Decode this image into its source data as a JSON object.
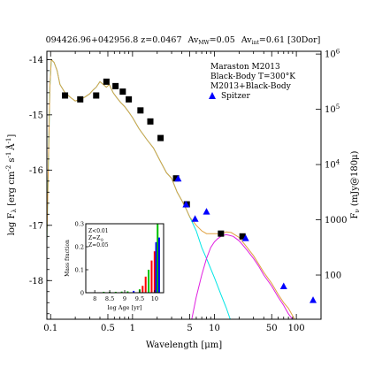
{
  "chart_data": {
    "type": "line",
    "title": "094426.96+042956.8 z=0.0467 Av_MW=0.05 Av_int=0.61 [30Dor]",
    "title_parts": {
      "name": "094426.96+042956.8 z=0.0467",
      "avmw": "Av",
      "avmw_sub": "MW",
      "avmw_val": "=0.05",
      "avint": "Av",
      "avint_sub": "int",
      "avint_val": "=0.61 [30Dor]"
    },
    "xlabel": "Wavelength [μm]",
    "ylabel": "log F_λ [erg cm^-2 s^-1 Å^-1]",
    "ylabel_parts": {
      "a": "log F",
      "a_sub": "λ",
      "b": " [erg cm",
      "b_sup": "-2",
      "c": " s",
      "c_sup": "-1",
      "d": "Å",
      "d_sup": "-1",
      "e": "]"
    },
    "y2label": "F_ν (mJy@180μ)",
    "y2label_parts": {
      "a": "F",
      "a_sub": "ν",
      "b": " (mJy@180μ)"
    },
    "x_scale": "log",
    "xlim": [
      0.09,
      200
    ],
    "ylim": [
      -18.7,
      -13.85
    ],
    "x_ticks": [
      0.1,
      0.5,
      1,
      5,
      10,
      50,
      100
    ],
    "x_tick_labels": [
      "0.1",
      "0.5",
      "1",
      "5",
      "10",
      "50",
      "100"
    ],
    "y_ticks": [
      -14,
      -15,
      -16,
      -17,
      -18
    ],
    "y_tick_labels": [
      "-14",
      "-15",
      "-16",
      "-17",
      "-18"
    ],
    "y2_ticks": [
      {
        "y": -13.9,
        "label": "10^6",
        "base": "10",
        "exp": "6"
      },
      {
        "y": -14.9,
        "label": "10^5",
        "base": "10",
        "exp": "5"
      },
      {
        "y": -15.9,
        "label": "10^4",
        "base": "10",
        "exp": "4"
      },
      {
        "y": -16.9,
        "label": "1000",
        "base": "1000",
        "exp": ""
      },
      {
        "y": -17.9,
        "label": "100",
        "base": "100",
        "exp": ""
      }
    ],
    "legend": {
      "placement": "top-right",
      "entries": [
        {
          "label": "Maraston M2013",
          "color": "#00e5e5"
        },
        {
          "label": "Black-Body T=300°K",
          "color": "#e020e0"
        },
        {
          "label": "M2013+Black-Body",
          "color": "#e0a040"
        },
        {
          "label": "Spitzer",
          "color": "#0000ff",
          "marker": "triangle"
        }
      ]
    },
    "series": [
      {
        "name": "Maraston M2013",
        "color": "#00e5e5",
        "x": [
          0.09,
          0.098,
          0.102,
          0.11,
          0.12,
          0.13,
          0.15,
          0.18,
          0.2,
          0.23,
          0.26,
          0.3,
          0.33,
          0.36,
          0.4,
          0.44,
          0.48,
          0.52,
          0.58,
          0.65,
          0.72,
          0.8,
          0.9,
          1.0,
          1.2,
          1.5,
          1.8,
          2.2,
          2.6,
          3.0,
          3.5,
          4.0,
          4.5,
          5.0,
          6.0,
          7.0,
          8.0,
          10.0,
          12.0,
          14.0,
          16.0
        ],
        "y": [
          -17.3,
          -14.5,
          -14.0,
          -14.05,
          -14.2,
          -14.45,
          -14.6,
          -14.7,
          -14.75,
          -14.72,
          -14.68,
          -14.62,
          -14.55,
          -14.5,
          -14.4,
          -14.45,
          -14.5,
          -14.45,
          -14.6,
          -14.7,
          -14.78,
          -14.85,
          -14.95,
          -15.05,
          -15.25,
          -15.45,
          -15.6,
          -15.85,
          -16.05,
          -16.15,
          -16.4,
          -16.55,
          -16.7,
          -16.85,
          -17.1,
          -17.4,
          -17.6,
          -17.95,
          -18.25,
          -18.5,
          -18.75
        ]
      },
      {
        "name": "Black-Body T=300°K",
        "color": "#e020e0",
        "x": [
          5.2,
          6.0,
          7.0,
          8.0,
          9.0,
          10.0,
          11.0,
          12.0,
          13.0,
          14.0,
          15.0,
          17.0,
          20.0,
          22.0,
          25.0,
          30.0,
          35.0,
          40.0,
          50.0,
          60.0,
          70.0,
          80.0,
          95.0
        ],
        "y": [
          -18.75,
          -18.3,
          -17.9,
          -17.6,
          -17.4,
          -17.3,
          -17.24,
          -17.2,
          -17.18,
          -17.17,
          -17.18,
          -17.2,
          -17.28,
          -17.35,
          -17.45,
          -17.6,
          -17.75,
          -17.9,
          -18.1,
          -18.3,
          -18.45,
          -18.6,
          -18.75
        ]
      },
      {
        "name": "M2013+Black-Body",
        "color": "#e0a040",
        "x": [
          0.09,
          0.098,
          0.102,
          0.11,
          0.12,
          0.13,
          0.15,
          0.18,
          0.2,
          0.23,
          0.26,
          0.3,
          0.33,
          0.36,
          0.4,
          0.44,
          0.48,
          0.52,
          0.58,
          0.65,
          0.72,
          0.8,
          0.9,
          1.0,
          1.2,
          1.5,
          1.8,
          2.2,
          2.6,
          3.0,
          3.5,
          4.0,
          4.5,
          5.0,
          6.0,
          7.0,
          8.0,
          10.0,
          12.0,
          14.0,
          16.0,
          20.0,
          25.0,
          30.0,
          40.0,
          50.0,
          60.0,
          70.0,
          80.0,
          95.0,
          110.0
        ],
        "y": [
          -17.3,
          -14.5,
          -14.0,
          -14.05,
          -14.2,
          -14.45,
          -14.6,
          -14.7,
          -14.75,
          -14.72,
          -14.68,
          -14.62,
          -14.55,
          -14.5,
          -14.4,
          -14.45,
          -14.5,
          -14.45,
          -14.6,
          -14.7,
          -14.78,
          -14.85,
          -14.95,
          -15.05,
          -15.25,
          -15.45,
          -15.6,
          -15.85,
          -16.05,
          -16.15,
          -16.4,
          -16.55,
          -16.7,
          -16.85,
          -17.0,
          -17.1,
          -17.15,
          -17.15,
          -17.15,
          -17.12,
          -17.13,
          -17.22,
          -17.4,
          -17.55,
          -17.85,
          -18.05,
          -18.25,
          -18.4,
          -18.5,
          -18.7,
          -18.8
        ]
      }
    ],
    "photometry_squares": {
      "marker": "square",
      "color": "#000000",
      "x": [
        0.15,
        0.23,
        0.36,
        0.48,
        0.62,
        0.76,
        0.9,
        1.25,
        1.65,
        2.2,
        3.4,
        4.6,
        12.0,
        22.0
      ],
      "y": [
        -14.65,
        -14.72,
        -14.65,
        -14.4,
        -14.48,
        -14.58,
        -14.72,
        -14.92,
        -15.12,
        -15.42,
        -16.15,
        -16.62,
        -17.15,
        -17.2
      ]
    },
    "photometry_spitzer": {
      "marker": "triangle",
      "color": "#0000ff",
      "x": [
        3.6,
        4.5,
        5.8,
        8.0,
        24.0,
        70.0,
        160.0
      ],
      "y": [
        -16.15,
        -16.62,
        -16.88,
        -16.75,
        -17.23,
        -18.1,
        -18.35
      ]
    },
    "inset": {
      "type": "bar",
      "xlabel": "log Age [yr]",
      "ylabel": "Mass fraction",
      "xlim": [
        7.7,
        10.3
      ],
      "ylim": [
        0,
        0.3
      ],
      "x_ticks": [
        8,
        8.5,
        9,
        9.5,
        10
      ],
      "x_tick_labels": [
        "8",
        "8.5",
        "9",
        "9.5",
        "10"
      ],
      "y_ticks": [
        0,
        0.1,
        0.2,
        0.3
      ],
      "y_tick_labels": [
        "0",
        "0.1",
        "0.2",
        "0.3"
      ],
      "legend": [
        {
          "label": "Z<0.01",
          "color": "#0000ff",
          "parts": {
            "a": "Z<0.01"
          }
        },
        {
          "label": "Z=Z⊙",
          "color": "#00c000",
          "parts": {
            "a": "Z=Z",
            "sub": "⊙"
          }
        },
        {
          "label": "Z=0.05",
          "color": "#ff0000",
          "parts": {
            "a": "Z=0.05"
          }
        }
      ],
      "bars": [
        {
          "x": 8.3,
          "value": 0.004,
          "color": "#00c000"
        },
        {
          "x": 8.5,
          "value": 0.004,
          "color": "#00c000"
        },
        {
          "x": 8.7,
          "value": 0.004,
          "color": "#00c000"
        },
        {
          "x": 8.9,
          "value": 0.005,
          "color": "#00c000"
        },
        {
          "x": 9.1,
          "value": 0.006,
          "color": "#00c000"
        },
        {
          "x": 9.3,
          "value": 0.008,
          "color": "#0000ff"
        },
        {
          "x": 9.5,
          "value": 0.015,
          "color": "#00c000"
        },
        {
          "x": 9.6,
          "value": 0.03,
          "color": "#ff0000"
        },
        {
          "x": 9.7,
          "value": 0.07,
          "color": "#ff0000"
        },
        {
          "x": 9.8,
          "value": 0.1,
          "color": "#00c000"
        },
        {
          "x": 9.9,
          "value": 0.14,
          "color": "#ff0000"
        },
        {
          "x": 10.0,
          "value": 0.18,
          "color": "#ff0000"
        },
        {
          "x": 10.05,
          "value": 0.22,
          "color": "#0000ff"
        },
        {
          "x": 10.1,
          "value": 0.3,
          "color": "#00c000"
        },
        {
          "x": 10.15,
          "value": 0.24,
          "color": "#0000ff"
        }
      ]
    }
  }
}
